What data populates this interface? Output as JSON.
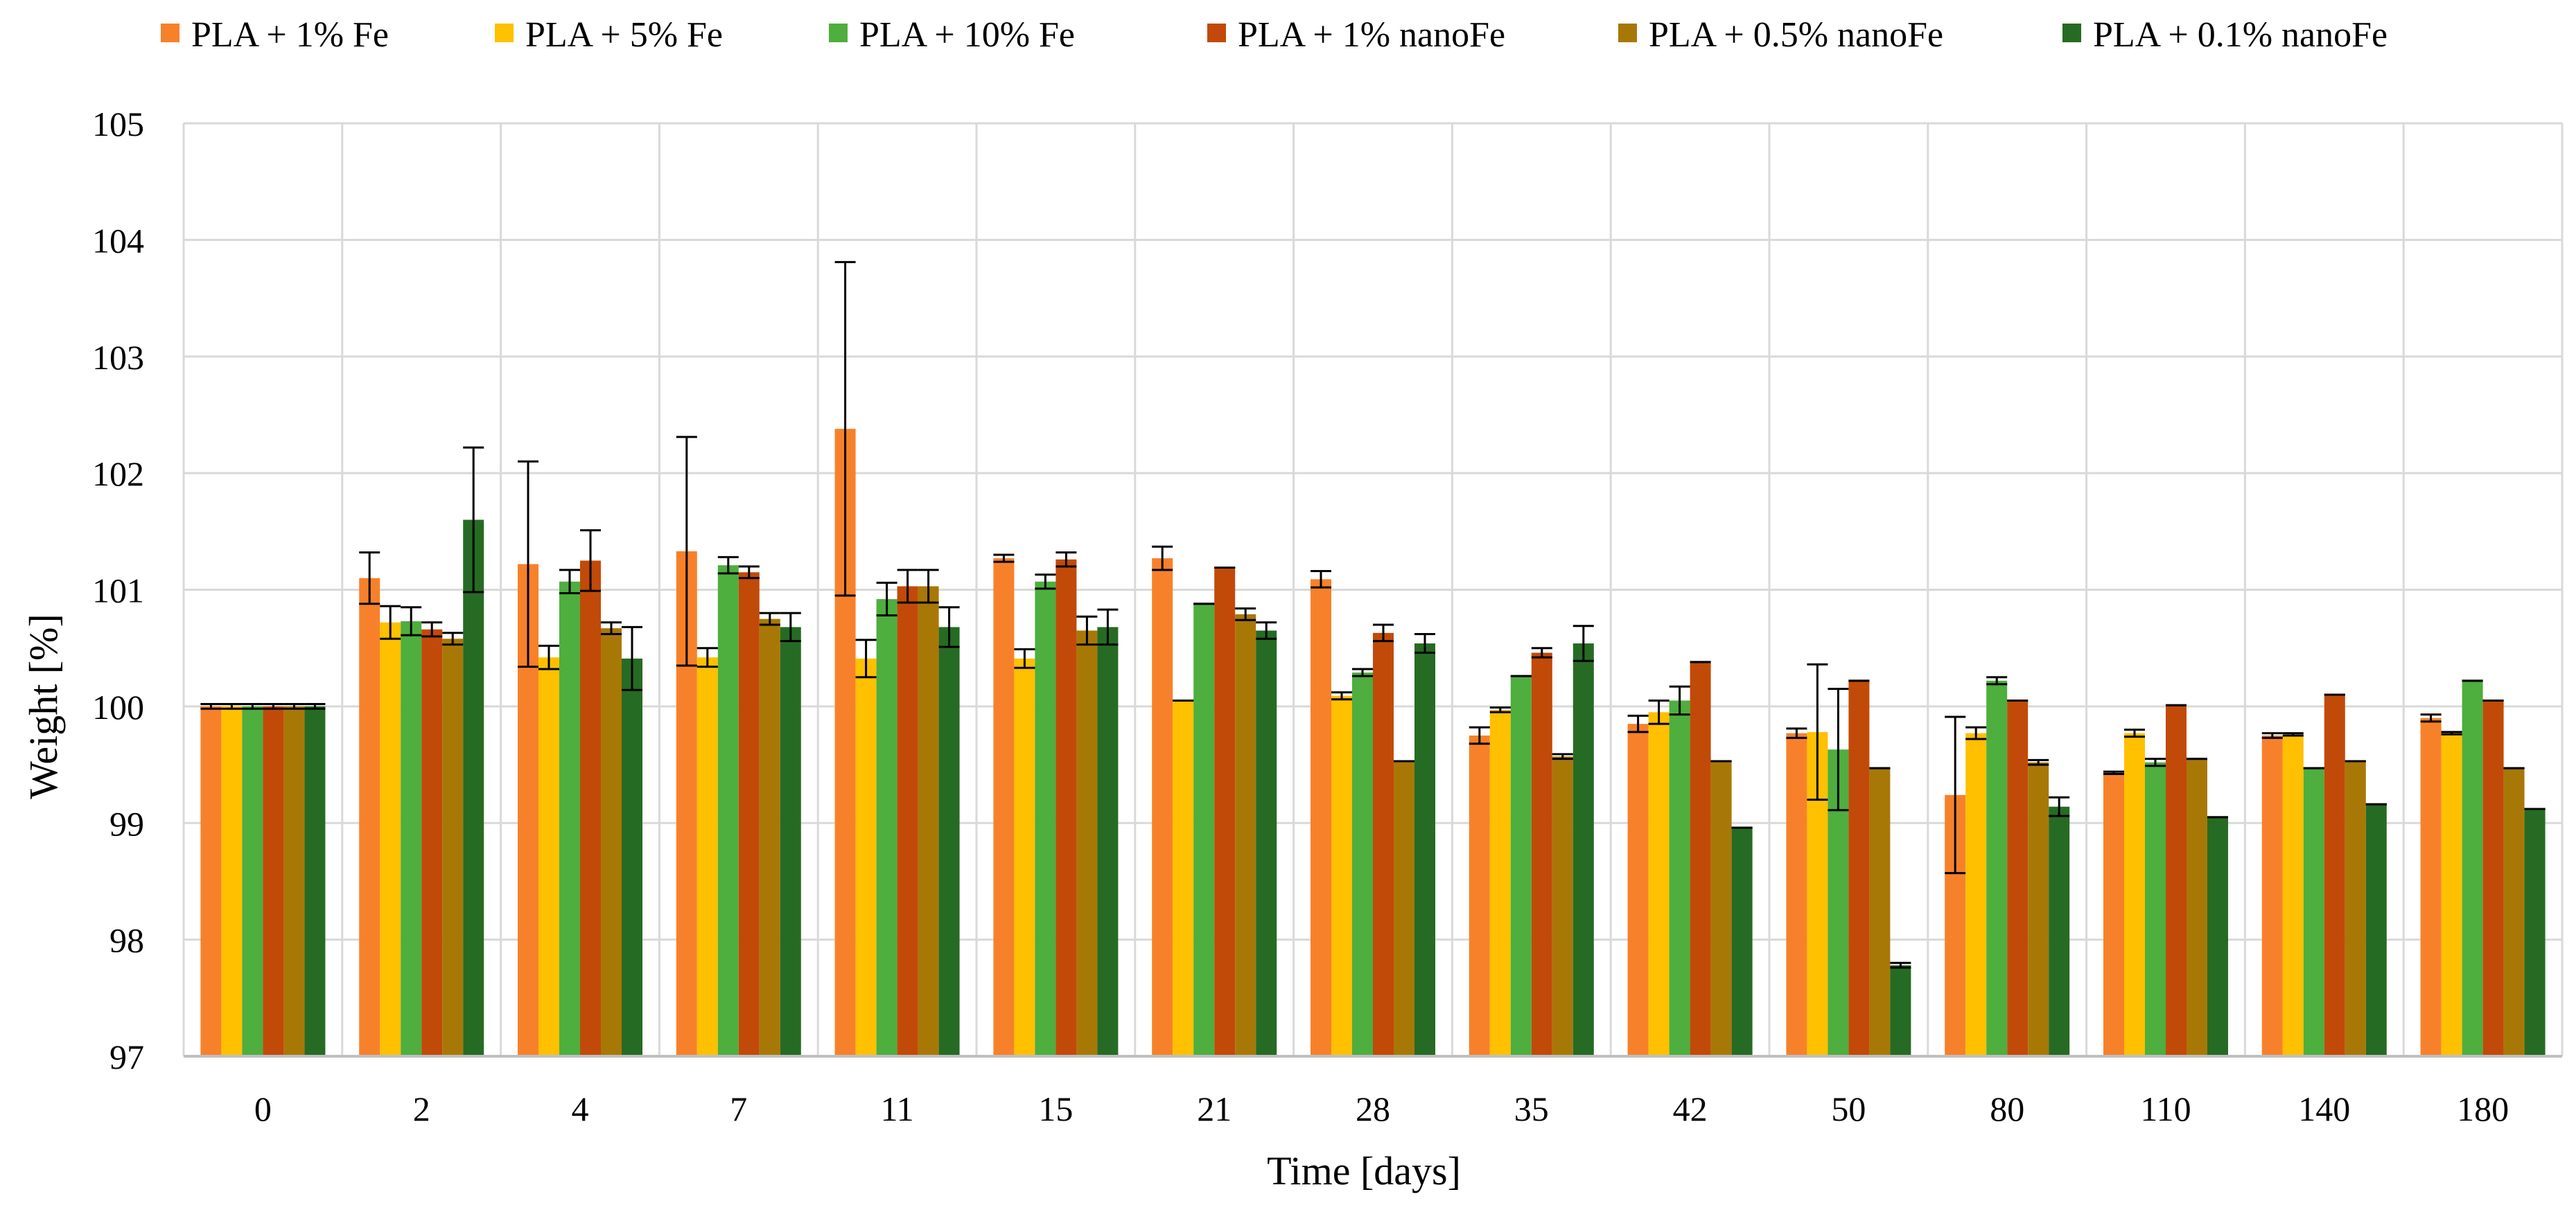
{
  "chart_data": {
    "type": "bar",
    "title": "",
    "xlabel": "Time [days]",
    "ylabel": "Weight  [%]",
    "ylim": [
      97,
      105
    ],
    "yticks": [
      97,
      98,
      99,
      100,
      101,
      102,
      103,
      104,
      105
    ],
    "grid": true,
    "legend_position": "top",
    "categories": [
      "0",
      "2",
      "4",
      "7",
      "11",
      "15",
      "21",
      "28",
      "35",
      "42",
      "50",
      "80",
      "110",
      "140",
      "180"
    ],
    "series": [
      {
        "name": "PLA + 1% Fe",
        "color": "#F7812A",
        "values": [
          100.0,
          101.1,
          101.22,
          101.33,
          102.38,
          101.27,
          101.27,
          101.09,
          99.75,
          99.85,
          99.77,
          99.24,
          99.43,
          99.75,
          99.9
        ],
        "errors": [
          0.02,
          0.22,
          0.88,
          0.98,
          1.43,
          0.03,
          0.1,
          0.07,
          0.07,
          0.07,
          0.04,
          0.67,
          0.01,
          0.02,
          0.03
        ]
      },
      {
        "name": "PLA + 5% Fe",
        "color": "#FFC000",
        "values": [
          100.0,
          100.72,
          100.42,
          100.42,
          100.41,
          100.41,
          100.05,
          100.09,
          99.97,
          99.95,
          99.78,
          99.77,
          99.77,
          99.76,
          99.77
        ],
        "errors": [
          0.02,
          0.14,
          0.1,
          0.08,
          0.16,
          0.08,
          0.0,
          0.03,
          0.02,
          0.1,
          0.58,
          0.05,
          0.03,
          0.01,
          0.01
        ]
      },
      {
        "name": "PLA + 10% Fe",
        "color": "#4EAE3E",
        "values": [
          100.0,
          100.73,
          101.07,
          101.21,
          100.92,
          101.07,
          100.88,
          100.29,
          100.26,
          100.05,
          99.63,
          100.22,
          99.52,
          99.47,
          100.22
        ],
        "errors": [
          0.02,
          0.12,
          0.1,
          0.07,
          0.14,
          0.06,
          0.0,
          0.03,
          0.0,
          0.12,
          0.52,
          0.03,
          0.03,
          0.0,
          0.0
        ]
      },
      {
        "name": "PLA + 1% nanoFe",
        "color": "#C14A09",
        "values": [
          100.0,
          100.66,
          101.25,
          101.15,
          101.03,
          101.26,
          101.19,
          100.63,
          100.46,
          100.38,
          100.22,
          100.05,
          100.01,
          100.1,
          100.05
        ],
        "errors": [
          0.02,
          0.06,
          0.26,
          0.05,
          0.14,
          0.06,
          0.0,
          0.07,
          0.04,
          0.0,
          0.0,
          0.0,
          0.0,
          0.0,
          0.0
        ]
      },
      {
        "name": "PLA + 0.5% nanoFe",
        "color": "#A87807",
        "values": [
          100.0,
          100.58,
          100.67,
          100.75,
          101.03,
          100.65,
          100.79,
          99.53,
          99.57,
          99.53,
          99.47,
          99.52,
          99.55,
          99.53,
          99.47
        ],
        "errors": [
          0.02,
          0.05,
          0.05,
          0.05,
          0.14,
          0.12,
          0.05,
          0.0,
          0.02,
          0.0,
          0.0,
          0.02,
          0.0,
          0.0,
          0.0
        ]
      },
      {
        "name": "PLA + 0.1% nanoFe",
        "color": "#266B23",
        "values": [
          100.0,
          101.6,
          100.41,
          100.68,
          100.68,
          100.68,
          100.65,
          100.54,
          100.54,
          98.96,
          97.78,
          99.14,
          99.05,
          99.16,
          99.12
        ],
        "errors": [
          0.02,
          0.62,
          0.27,
          0.12,
          0.17,
          0.15,
          0.07,
          0.08,
          0.15,
          0.0,
          0.02,
          0.08,
          0.0,
          0.0,
          0.0
        ]
      }
    ]
  }
}
